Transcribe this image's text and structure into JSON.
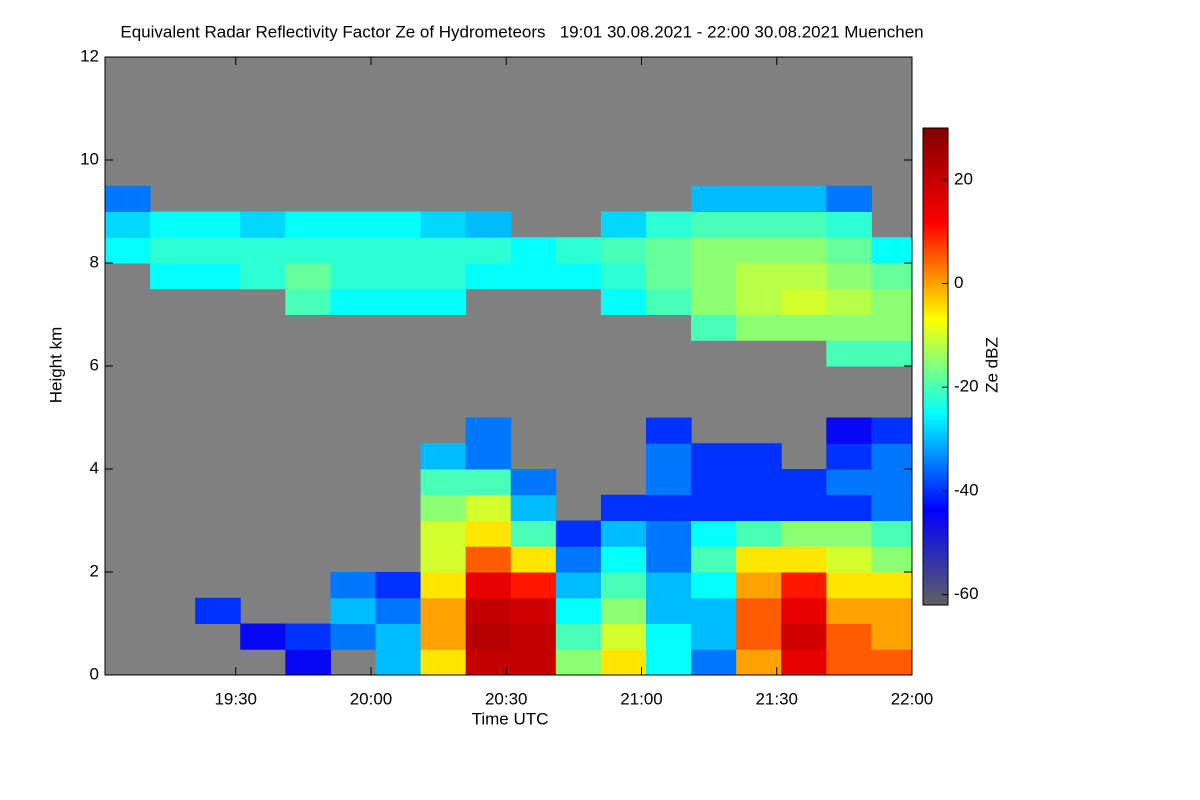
{
  "chart_data": {
    "type": "heatmap",
    "title": "Equivalent Radar Reflectivity Factor Ze of Hydrometeors   19:01 30.08.2021 - 22:00 30.08.2021 Muenchen",
    "xlabel": "Time UTC",
    "ylabel": "Height km",
    "colorbar_label": "Ze dBZ",
    "background": "#808080",
    "colormap": [
      "#606060",
      "#0000ff",
      "#00ffff",
      "#ffff00",
      "#ff0000",
      "#800000"
    ],
    "xlim": [
      1141,
      1320
    ],
    "xticks": [
      {
        "value": 1170,
        "label": "19:30"
      },
      {
        "value": 1200,
        "label": "20:00"
      },
      {
        "value": 1230,
        "label": "20:30"
      },
      {
        "value": 1260,
        "label": "21:00"
      },
      {
        "value": 1290,
        "label": "21:30"
      },
      {
        "value": 1320,
        "label": "22:00"
      }
    ],
    "ylim": [
      0,
      12
    ],
    "yticks": [
      0,
      2,
      4,
      6,
      8,
      10,
      12
    ],
    "zlim": [
      -62,
      30
    ],
    "zticks": [
      -60,
      -40,
      -20,
      0,
      20
    ],
    "x_bins": [
      1141,
      1151,
      1161,
      1171,
      1181,
      1191,
      1201,
      1211,
      1221,
      1231,
      1241,
      1251,
      1261,
      1271,
      1281,
      1291,
      1301,
      1311,
      1320
    ],
    "y_bins": [
      0,
      0.5,
      1,
      1.5,
      2,
      2.5,
      3,
      3.5,
      4,
      4.5,
      5,
      5.5,
      6,
      6.5,
      7,
      7.5,
      8,
      8.5,
      9,
      9.5,
      10,
      10.5,
      11,
      11.5,
      12
    ],
    "values": [
      [
        null,
        null,
        null,
        null,
        -45,
        null,
        -30,
        -5,
        20,
        20,
        -15,
        -5,
        -25,
        -35,
        0,
        15,
        5,
        5
      ],
      [
        null,
        null,
        null,
        -45,
        -40,
        -35,
        -30,
        0,
        22,
        20,
        -20,
        -10,
        -25,
        -30,
        5,
        18,
        5,
        0
      ],
      [
        null,
        null,
        -40,
        null,
        null,
        -30,
        -35,
        0,
        20,
        18,
        -25,
        -15,
        -30,
        -30,
        5,
        15,
        0,
        0
      ],
      [
        null,
        null,
        null,
        null,
        null,
        -35,
        -40,
        -5,
        15,
        10,
        -30,
        -20,
        -30,
        -25,
        0,
        10,
        -5,
        -5
      ],
      [
        null,
        null,
        null,
        null,
        null,
        null,
        null,
        -10,
        5,
        -5,
        -35,
        -25,
        -35,
        -20,
        -5,
        -5,
        -10,
        -15
      ],
      [
        null,
        null,
        null,
        null,
        null,
        null,
        null,
        -10,
        -5,
        -20,
        -40,
        -30,
        -35,
        -25,
        -20,
        -15,
        -15,
        -20
      ],
      [
        null,
        null,
        null,
        null,
        null,
        null,
        null,
        -15,
        -10,
        -30,
        null,
        -40,
        -40,
        -40,
        -40,
        -40,
        -40,
        -35
      ],
      [
        null,
        null,
        null,
        null,
        null,
        null,
        null,
        -20,
        -20,
        -35,
        null,
        null,
        -35,
        -40,
        -40,
        -40,
        -35,
        -35
      ],
      [
        null,
        null,
        null,
        null,
        null,
        null,
        null,
        -30,
        -35,
        null,
        null,
        null,
        -35,
        -40,
        -40,
        null,
        -40,
        -35
      ],
      [
        null,
        null,
        null,
        null,
        null,
        null,
        null,
        null,
        -35,
        null,
        null,
        null,
        -40,
        null,
        null,
        null,
        -45,
        -40
      ],
      [
        null,
        null,
        null,
        null,
        null,
        null,
        null,
        null,
        null,
        null,
        null,
        null,
        null,
        null,
        null,
        null,
        null,
        null
      ],
      [
        null,
        null,
        null,
        null,
        null,
        null,
        null,
        null,
        null,
        null,
        null,
        null,
        null,
        null,
        null,
        null,
        null,
        null
      ],
      [
        null,
        null,
        null,
        null,
        null,
        null,
        null,
        null,
        null,
        null,
        null,
        null,
        null,
        null,
        null,
        null,
        -20,
        -20
      ],
      [
        null,
        null,
        null,
        null,
        null,
        null,
        null,
        null,
        null,
        null,
        null,
        null,
        null,
        -20,
        -15,
        -15,
        -15,
        -15
      ],
      [
        null,
        null,
        null,
        null,
        -20,
        -25,
        -25,
        -25,
        null,
        null,
        null,
        -25,
        -20,
        -15,
        -12,
        -10,
        -12,
        -15
      ],
      [
        null,
        -25,
        -25,
        -22,
        -18,
        -22,
        -22,
        -22,
        -25,
        -25,
        -25,
        -22,
        -18,
        -15,
        -12,
        -12,
        -15,
        -18
      ],
      [
        -25,
        -22,
        -22,
        -22,
        -22,
        -22,
        -22,
        -22,
        -22,
        -25,
        -22,
        -20,
        -18,
        -15,
        -15,
        -15,
        -18,
        -25
      ],
      [
        -28,
        -25,
        -25,
        -28,
        -25,
        -25,
        -25,
        -28,
        -30,
        null,
        null,
        -28,
        -22,
        -20,
        -20,
        -20,
        -22,
        null
      ],
      [
        -35,
        null,
        null,
        null,
        null,
        null,
        null,
        null,
        null,
        null,
        null,
        null,
        null,
        -30,
        -30,
        -30,
        -35,
        null
      ],
      [
        null,
        null,
        null,
        null,
        null,
        null,
        null,
        null,
        null,
        null,
        null,
        null,
        null,
        null,
        null,
        null,
        null,
        null
      ],
      [
        null,
        null,
        null,
        null,
        null,
        null,
        null,
        null,
        null,
        null,
        null,
        null,
        null,
        null,
        null,
        null,
        null,
        null
      ],
      [
        null,
        null,
        null,
        null,
        null,
        null,
        null,
        null,
        null,
        null,
        null,
        null,
        null,
        null,
        null,
        null,
        null,
        null
      ],
      [
        null,
        null,
        null,
        null,
        null,
        null,
        null,
        null,
        null,
        null,
        null,
        null,
        null,
        null,
        null,
        null,
        null,
        null
      ],
      [
        null,
        null,
        null,
        null,
        null,
        null,
        null,
        null,
        null,
        null,
        null,
        null,
        null,
        null,
        null,
        null,
        null,
        null
      ]
    ]
  }
}
